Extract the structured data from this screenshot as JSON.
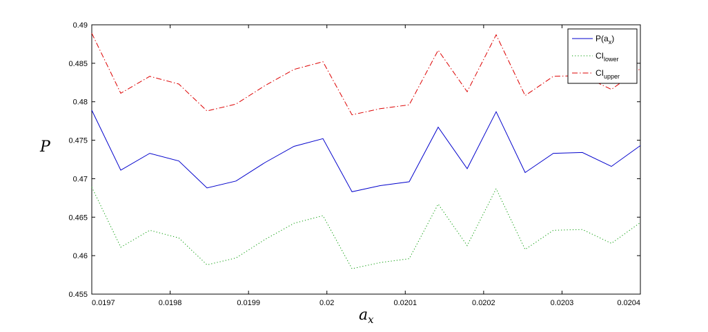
{
  "chart_data": {
    "type": "line",
    "title": "",
    "xlabel": "a",
    "xlabel_sub": "x",
    "ylabel": "P",
    "xlim": [
      0.0197,
      0.0204
    ],
    "ylim": [
      0.455,
      0.49
    ],
    "xticks": [
      "0.0197",
      "0.0198",
      "0.0199",
      "0.02",
      "0.0201",
      "0.0202",
      "0.0203",
      "0.0204"
    ],
    "yticks": [
      "0.455",
      "0.46",
      "0.465",
      "0.47",
      "0.475",
      "0.48",
      "0.485",
      "0.49"
    ],
    "grid": false,
    "legend_position": "top-right",
    "x": [
      0.0197,
      0.019737,
      0.019774,
      0.019811,
      0.019847,
      0.019884,
      0.019921,
      0.019958,
      0.019995,
      0.020032,
      0.020068,
      0.020105,
      0.020142,
      0.020179,
      0.020216,
      0.020253,
      0.020289,
      0.020326,
      0.020363,
      0.0204
    ],
    "series": [
      {
        "name_main": "P(a",
        "name_sub": "x",
        "name_tail": ")",
        "color": "#0000cc",
        "dash": "solid",
        "values": [
          0.4789,
          0.4711,
          0.4733,
          0.4723,
          0.4688,
          0.4697,
          0.4721,
          0.4742,
          0.4752,
          0.4683,
          0.4691,
          0.4696,
          0.4767,
          0.4713,
          0.4787,
          0.4708,
          0.4733,
          0.4734,
          0.4716,
          0.4743
        ]
      },
      {
        "name_main": "CI",
        "name_sub": "lower",
        "name_tail": "",
        "color": "#009900",
        "dash": "dotted",
        "values": [
          0.4689,
          0.4611,
          0.4633,
          0.4623,
          0.4588,
          0.4597,
          0.4621,
          0.4642,
          0.4652,
          0.4583,
          0.4591,
          0.4596,
          0.4667,
          0.4613,
          0.4687,
          0.4608,
          0.4633,
          0.4634,
          0.4616,
          0.4643
        ]
      },
      {
        "name_main": "CI",
        "name_sub": "upper",
        "name_tail": "",
        "color": "#dd0000",
        "dash": "dashdot",
        "values": [
          0.4889,
          0.4811,
          0.4833,
          0.4823,
          0.4788,
          0.4797,
          0.4821,
          0.4842,
          0.4852,
          0.4783,
          0.4791,
          0.4796,
          0.4867,
          0.4813,
          0.4887,
          0.4808,
          0.4833,
          0.4834,
          0.4816,
          0.4843
        ]
      }
    ]
  }
}
